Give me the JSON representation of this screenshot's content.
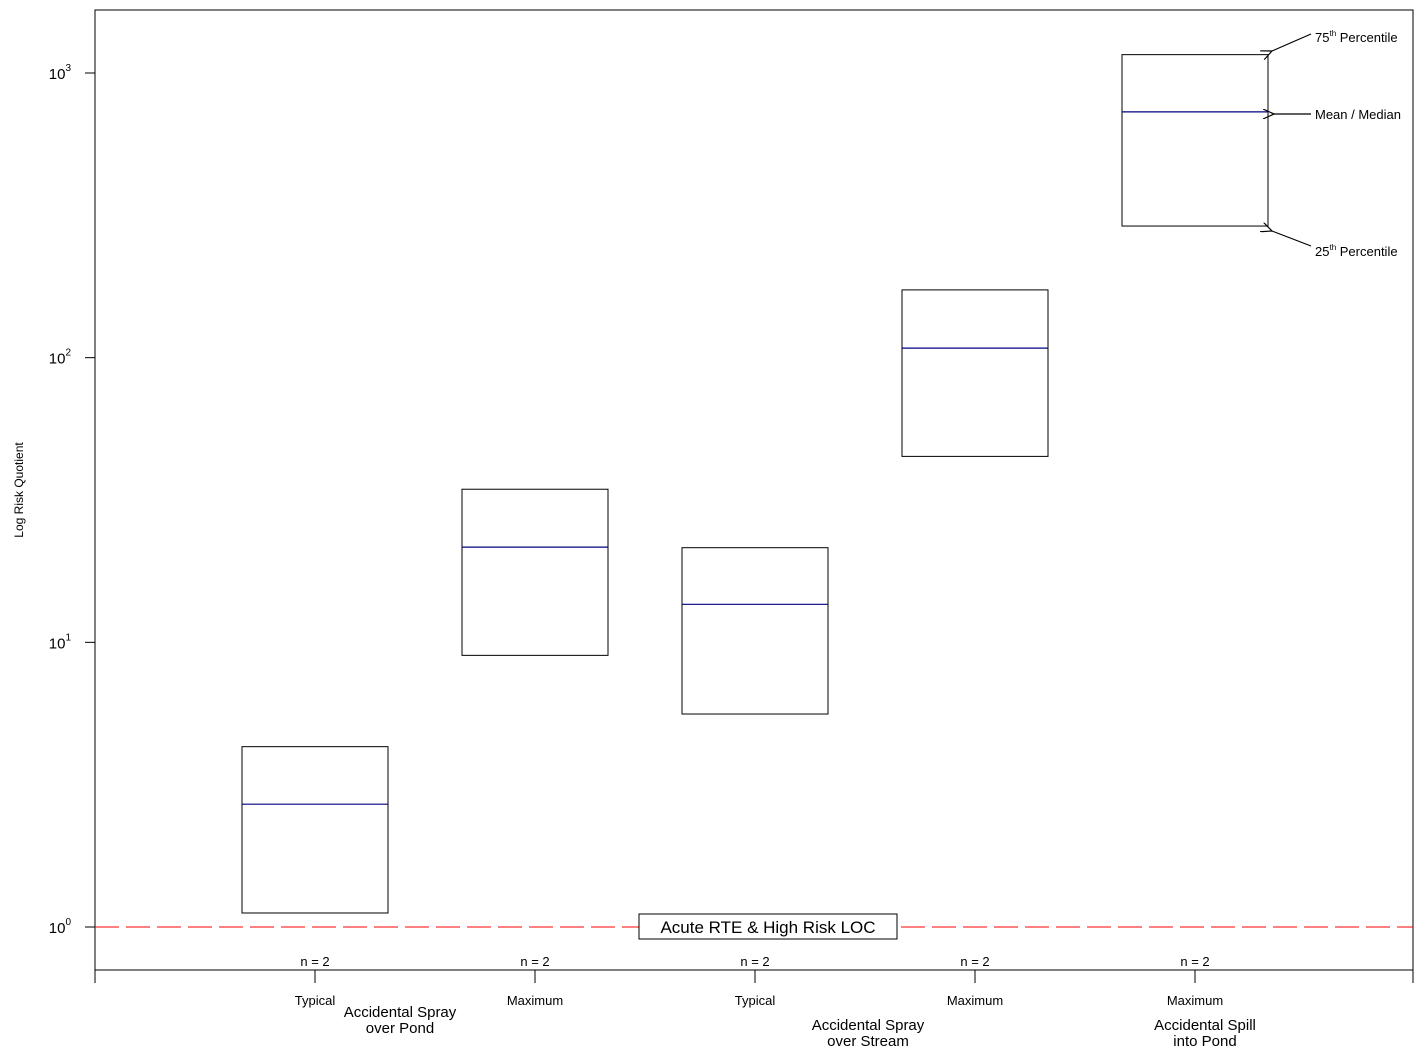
{
  "chart_data": {
    "type": "box",
    "ylabel": "Log Risk Quotient",
    "yscale": "log",
    "ylim": [
      0.7,
      1600.0
    ],
    "yticks": [
      {
        "value": 1,
        "base": "10",
        "exp": "0"
      },
      {
        "value": 10,
        "base": "10",
        "exp": "1"
      },
      {
        "value": 100,
        "base": "10",
        "exp": "2"
      },
      {
        "value": 1000,
        "base": "10",
        "exp": "3"
      }
    ],
    "grid": false,
    "boxes": [
      {
        "label": "Typical",
        "n_label": "n = 2",
        "q1": 1.12,
        "median": 2.7,
        "q3": 4.3
      },
      {
        "label": "Maximum",
        "n_label": "n = 2",
        "q1": 9.0,
        "median": 21.6,
        "q3": 34.5
      },
      {
        "label": "Typical",
        "n_label": "n = 2",
        "q1": 5.6,
        "median": 13.6,
        "q3": 21.5
      },
      {
        "label": "Maximum",
        "n_label": "n = 2",
        "q1": 45,
        "median": 108,
        "q3": 173
      },
      {
        "label": "Maximum",
        "n_label": "n = 2",
        "q1": 290,
        "median": 730,
        "q3": 1160
      }
    ],
    "groups": [
      {
        "lines": [
          "Accidental Spray",
          "over Pond"
        ]
      },
      {
        "lines": [
          "Accidental Spray",
          "over Stream"
        ]
      },
      {
        "lines": [
          "Accidental Spill",
          "into Pond"
        ]
      }
    ],
    "reference_line": {
      "value": 1,
      "label": "Acute RTE & High Risk LOC",
      "color": "#ff0000"
    },
    "annotations": {
      "p75": {
        "num": "75",
        "sup": "th",
        "text": " Percentile"
      },
      "mean": {
        "text": "Mean / Median"
      },
      "p25": {
        "num": "25",
        "sup": "th",
        "text": " Percentile"
      }
    },
    "median_color": "#000080"
  }
}
